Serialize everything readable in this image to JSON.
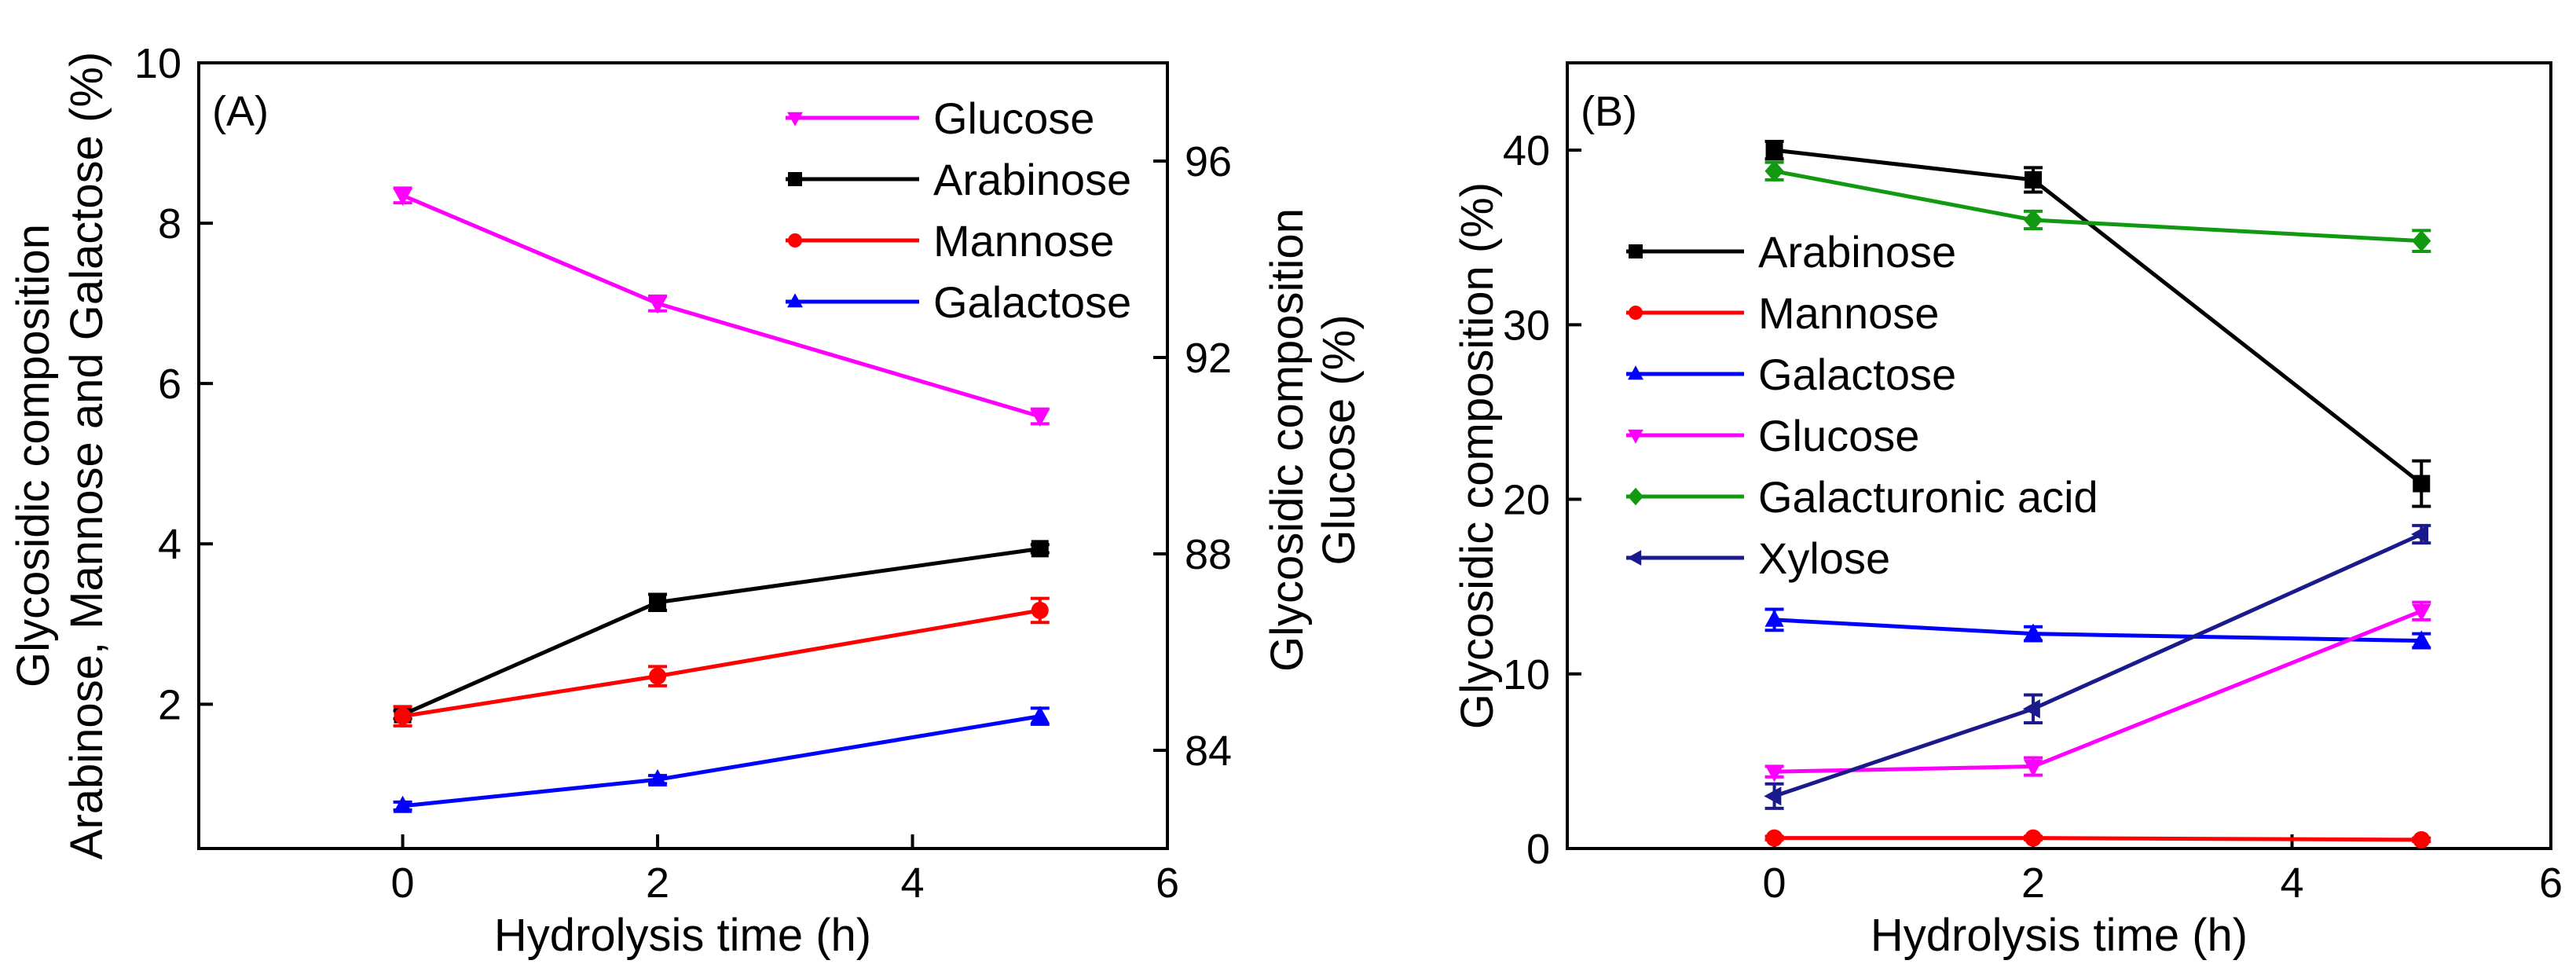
{
  "chart_data": [
    {
      "panel": "(A)",
      "type": "line",
      "xlabel": "Hydrolysis time (h)",
      "x_ticks": [
        0,
        2,
        4,
        6
      ],
      "xlim": [
        -1.6,
        6
      ],
      "ylabel": [
        "Glycosidic composition",
        "Arabinose, Mannose and Galactose (%)"
      ],
      "ylim": [
        0.2,
        10
      ],
      "y_ticks": [
        2,
        4,
        6,
        8,
        10
      ],
      "y2label": [
        "Glycosidic composition",
        "Glucose (%)"
      ],
      "y2lim": [
        82.0,
        98.0
      ],
      "y2_ticks": [
        84,
        88,
        92,
        96
      ],
      "legend_position": "top-right",
      "series": [
        {
          "name": "Glucose",
          "color": "#ff00ff",
          "marker": "triangle-down",
          "axis": "right",
          "x": [
            0,
            2,
            5
          ],
          "values": [
            95.3,
            93.1,
            90.8
          ],
          "errors": [
            0.15,
            0.15,
            0.15
          ]
        },
        {
          "name": "Arabinose",
          "color": "#000000",
          "marker": "square",
          "axis": "left",
          "x": [
            0,
            2,
            5
          ],
          "values": [
            1.87,
            3.27,
            3.94
          ],
          "errors": [
            0.05,
            0.1,
            0.05
          ]
        },
        {
          "name": "Mannose",
          "color": "#ff0000",
          "marker": "circle",
          "axis": "left",
          "x": [
            0,
            2,
            5
          ],
          "values": [
            1.85,
            2.35,
            3.17
          ],
          "errors": [
            0.12,
            0.12,
            0.15
          ]
        },
        {
          "name": "Galactose",
          "color": "#0000ff",
          "marker": "triangle-up",
          "axis": "left",
          "x": [
            0,
            2,
            5
          ],
          "values": [
            0.73,
            1.06,
            1.85
          ],
          "errors": [
            0.05,
            0.05,
            0.1
          ]
        }
      ]
    },
    {
      "panel": "(B)",
      "type": "line",
      "xlabel": "Hydrolysis time (h)",
      "x_ticks": [
        0,
        2,
        4,
        6
      ],
      "xlim": [
        -1.6,
        6
      ],
      "ylabel": "Glycosidic composition (%)",
      "ylim": [
        0,
        45
      ],
      "y_ticks": [
        0,
        10,
        20,
        30,
        40
      ],
      "legend_position": "middle-left",
      "series": [
        {
          "name": "Arabinose",
          "color": "#000000",
          "marker": "square",
          "x": [
            0,
            2,
            5
          ],
          "values": [
            40.0,
            38.3,
            20.9
          ],
          "errors": [
            0.5,
            0.7,
            1.3
          ]
        },
        {
          "name": "Mannose",
          "color": "#ff0000",
          "marker": "circle",
          "x": [
            0,
            2,
            5
          ],
          "values": [
            0.6,
            0.6,
            0.5
          ],
          "errors": [
            0.1,
            0.1,
            0.1
          ]
        },
        {
          "name": "Galactose",
          "color": "#0000ff",
          "marker": "triangle-up",
          "x": [
            0,
            2,
            5
          ],
          "values": [
            13.1,
            12.3,
            11.9
          ],
          "errors": [
            0.6,
            0.4,
            0.4
          ]
        },
        {
          "name": "Glucose",
          "color": "#ff00ff",
          "marker": "triangle-down",
          "x": [
            0,
            2,
            5
          ],
          "values": [
            4.4,
            4.7,
            13.6
          ],
          "errors": [
            0.3,
            0.5,
            0.5
          ]
        },
        {
          "name": "Galacturonic acid",
          "color": "#119911",
          "marker": "diamond",
          "x": [
            0,
            2,
            5
          ],
          "values": [
            38.8,
            36.0,
            34.8
          ],
          "errors": [
            0.5,
            0.5,
            0.6
          ]
        },
        {
          "name": "Xylose",
          "color": "#1a1a8c",
          "marker": "triangle-left",
          "x": [
            0,
            2,
            5
          ],
          "values": [
            3.0,
            8.0,
            18.0
          ],
          "errors": [
            0.7,
            0.8,
            0.5
          ]
        }
      ]
    }
  ]
}
